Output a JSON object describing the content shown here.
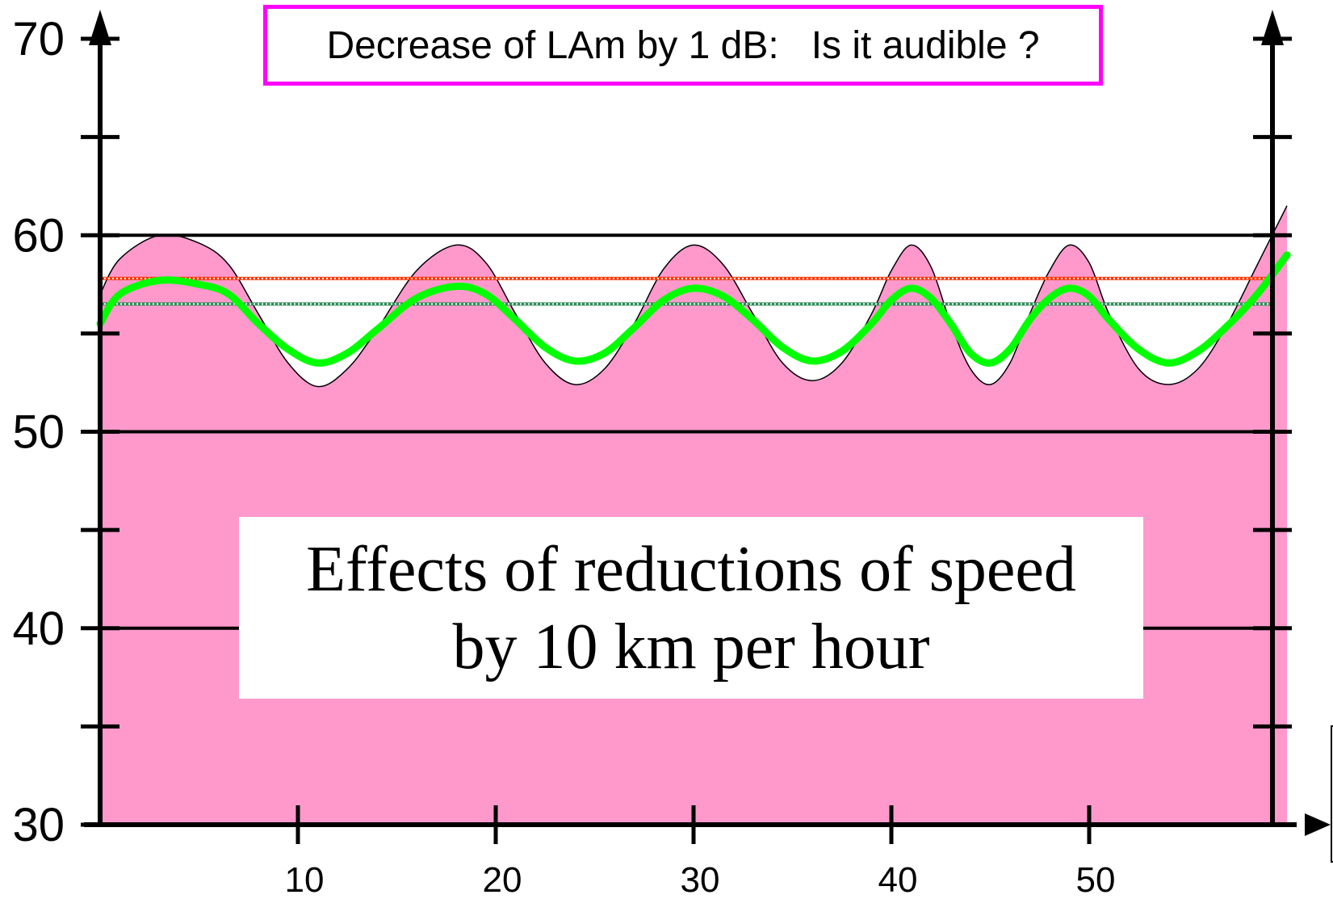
{
  "header": {
    "text": "Decrease of LAm by 1 dB:   Is it audible ?",
    "border_color": "#ff00ff"
  },
  "caption": {
    "line1": "Effects of reductions of speed",
    "line2": "by 10 km per hour"
  },
  "chart_data": {
    "type": "area",
    "title": "Decrease of LAm by 1 dB:   Is it audible ?",
    "xlabel": "",
    "ylabel": "",
    "xlim": [
      0,
      60
    ],
    "ylim": [
      30,
      70
    ],
    "x_ticks": [
      10,
      20,
      30,
      40,
      50
    ],
    "y_ticks": [
      30,
      40,
      50,
      60,
      70
    ],
    "y_minor_ticks": [
      35,
      45,
      55,
      65
    ],
    "gridlines_y": [
      40,
      50,
      60
    ],
    "colors": {
      "fill": "#ff99cc",
      "upper_mean_line": "#ff3300",
      "lower_mean_line": "#2e8b57",
      "reduced_level_line": "#00ff00"
    },
    "series": [
      {
        "x": [
          0,
          1,
          3,
          5,
          6.5,
          8,
          9.5,
          11,
          12.5,
          14,
          16,
          18,
          19.5,
          21,
          22.5,
          24,
          25.5,
          27,
          28.5,
          30,
          31.5,
          33,
          34.5,
          36,
          37.5,
          39,
          40,
          41,
          42,
          43,
          44,
          45,
          46,
          47,
          48,
          49,
          50,
          51,
          52.5,
          54,
          55.5,
          57,
          58.5,
          60
        ],
        "y": [
          57,
          58.8,
          60,
          59.6,
          58.5,
          56,
          53.5,
          52.3,
          53.2,
          55.2,
          58.2,
          59.5,
          58.6,
          56,
          53.5,
          52.4,
          53.2,
          55.5,
          58.3,
          59.5,
          58.5,
          56,
          53.5,
          52.6,
          53.5,
          56,
          58.2,
          59.5,
          58.4,
          55.5,
          53.2,
          52.4,
          53.5,
          56,
          58.2,
          59.5,
          58.6,
          56,
          53.2,
          52.4,
          53.2,
          55.5,
          58.5,
          61.5
        ]
      },
      {
        "x": [
          0,
          1,
          3,
          5,
          6.5,
          8,
          9.5,
          11,
          12.5,
          14,
          16,
          18,
          19.5,
          21,
          22.5,
          24,
          25.5,
          27,
          28.5,
          30,
          31.5,
          33,
          34.5,
          36,
          37.5,
          39,
          40,
          41,
          42,
          43,
          44,
          45,
          46,
          47,
          48,
          49,
          50,
          51,
          52.5,
          54,
          55.5,
          57,
          58.5,
          60
        ],
        "y": [
          55.5,
          57,
          57.7,
          57.5,
          57,
          55.5,
          54.2,
          53.5,
          54,
          55.2,
          56.8,
          57.4,
          57,
          55.7,
          54.3,
          53.6,
          54,
          55.3,
          56.7,
          57.3,
          56.9,
          55.7,
          54.3,
          53.6,
          54.1,
          55.5,
          56.7,
          57.3,
          56.8,
          55.5,
          54,
          53.5,
          54.2,
          55.7,
          56.8,
          57.3,
          56.9,
          55.7,
          54.2,
          53.5,
          54.1,
          55.4,
          57,
          59
        ]
      }
    ],
    "reference_lines": [
      57.8,
      56.5
    ]
  }
}
